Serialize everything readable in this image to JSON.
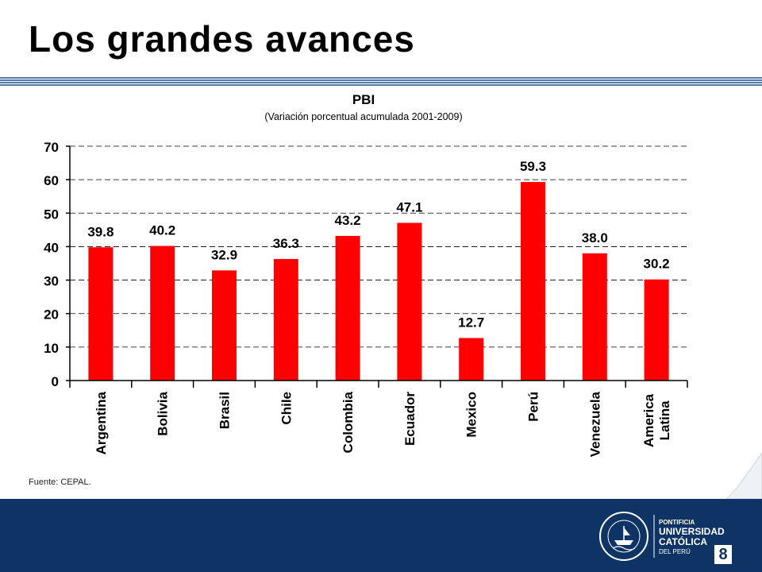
{
  "slide": {
    "title": "Los grandes avances",
    "source": "Fuente: CEPAL.",
    "page_number": "8",
    "university": {
      "line1": "PONTIFICIA",
      "line2": "UNIVERSIDAD",
      "line3": "CATÓLICA",
      "line4": "DEL PERÚ",
      "seal_text": "ET LUX IN TENEBRIS LUCET",
      "seal_year": "MCMXVII"
    }
  },
  "colors": {
    "bar": "#ff0000",
    "footer": "#0d3465",
    "rule": "#1f4e8c"
  },
  "chart_data": {
    "type": "bar",
    "title": "PBI",
    "subtitle": "(Variación porcentual acumulada 2001-2009)",
    "categories": [
      "Argentina",
      "Bolivia",
      "Brasil",
      "Chile",
      "Colombia",
      "Ecuador",
      "Mexico",
      "Perú",
      "Venezuela",
      "America Latina"
    ],
    "values": [
      39.8,
      40.2,
      32.9,
      36.3,
      43.2,
      47.1,
      12.7,
      59.3,
      38.0,
      30.2
    ],
    "value_labels": [
      "39.8",
      "40.2",
      "32.9",
      "36.3",
      "43.2",
      "47.1",
      "12.7",
      "59.3",
      "38.0",
      "30.2"
    ],
    "xlabel": "",
    "ylabel": "",
    "ylim": [
      0,
      70
    ],
    "yticks": [
      "0",
      "10",
      "20",
      "30",
      "40",
      "50",
      "60",
      "70"
    ],
    "grid": "dashed horizontal",
    "legend": "none"
  }
}
